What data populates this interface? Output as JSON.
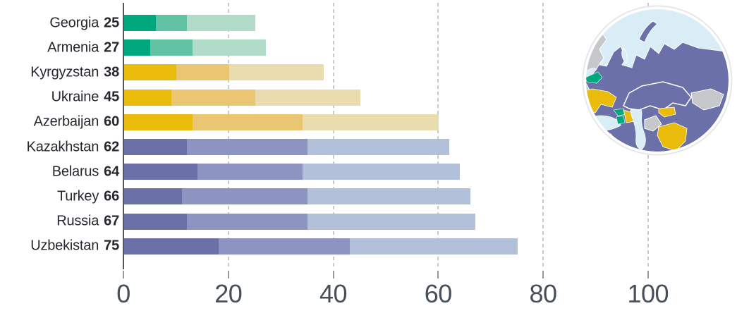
{
  "chart_data": {
    "type": "bar",
    "subtype": "horizontal-stacked",
    "x_axis": {
      "ticks": [
        0,
        20,
        40,
        60,
        80,
        100
      ],
      "max": 100,
      "gridlines": "dashed"
    },
    "palette": {
      "green": [
        "#00a87e",
        "#62c2a4",
        "#b2dcca"
      ],
      "gold": [
        "#e9bc0c",
        "#eac673",
        "#e9ddb0"
      ],
      "purple": [
        "#6b70a9",
        "#8d94c1",
        "#b2c0d9"
      ]
    },
    "rows": [
      {
        "label": "Georgia",
        "value": 25,
        "group": "green",
        "segments": [
          6,
          6,
          13
        ]
      },
      {
        "label": "Armenia",
        "value": 27,
        "group": "green",
        "segments": [
          5,
          8,
          14
        ]
      },
      {
        "label": "Kyrgyzstan",
        "value": 38,
        "group": "gold",
        "segments": [
          10,
          10,
          18
        ]
      },
      {
        "label": "Ukraine",
        "value": 45,
        "group": "gold",
        "segments": [
          9,
          16,
          20
        ]
      },
      {
        "label": "Azerbaijan",
        "value": 60,
        "group": "gold",
        "segments": [
          13,
          21,
          26
        ]
      },
      {
        "label": "Kazakhstan",
        "value": 62,
        "group": "purple",
        "segments": [
          12,
          23,
          27
        ]
      },
      {
        "label": "Belarus",
        "value": 64,
        "group": "purple",
        "segments": [
          14,
          20,
          30
        ]
      },
      {
        "label": "Turkey",
        "value": 66,
        "group": "purple",
        "segments": [
          11,
          24,
          31
        ]
      },
      {
        "label": "Russia",
        "value": 67,
        "group": "purple",
        "segments": [
          12,
          23,
          32
        ]
      },
      {
        "label": "Uzbekistan",
        "value": 75,
        "group": "purple",
        "segments": [
          18,
          25,
          32
        ]
      }
    ]
  },
  "map_inset": {
    "shape": "circle",
    "ocean_color": "#d9edf6",
    "other_land_color": "#c6c7ca",
    "border_color": "#ffffff",
    "highlight_colors": {
      "green": "#00a87e",
      "gold": "#e9bc0c",
      "purple": "#6b70a9"
    }
  }
}
